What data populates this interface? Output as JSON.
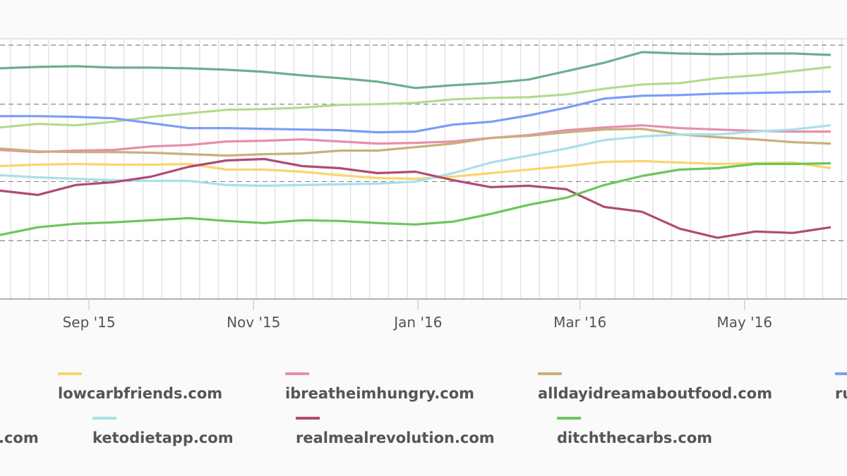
{
  "chart_data": {
    "type": "line",
    "title": "",
    "xlabel": "",
    "ylabel": "",
    "x_ticks": [
      {
        "date": "2015-09-01",
        "label": "Sep '15"
      },
      {
        "date": "2015-11-01",
        "label": "Nov '15"
      },
      {
        "date": "2016-01-01",
        "label": "Jan '16"
      },
      {
        "date": "2016-03-01",
        "label": "Mar '16"
      },
      {
        "date": "2016-05-01",
        "label": "May '16"
      }
    ],
    "xlim": [
      "2015-07-30",
      "2016-06-08"
    ],
    "ylim": [
      0,
      370
    ],
    "y_gridlines": [
      83,
      167,
      277,
      361
    ],
    "grid": {
      "vertical": "weekly",
      "horizontal": "dashed"
    },
    "legend_placement": "bottom",
    "x": [
      "2015-07-30",
      "2015-08-13",
      "2015-08-27",
      "2015-09-10",
      "2015-09-24",
      "2015-10-08",
      "2015-10-22",
      "2015-11-05",
      "2015-11-19",
      "2015-12-03",
      "2015-12-17",
      "2015-12-31",
      "2016-01-14",
      "2016-01-28",
      "2016-02-11",
      "2016-02-25",
      "2016-03-10",
      "2016-03-24",
      "2016-04-07",
      "2016-04-21",
      "2016-05-05",
      "2016-05-19",
      "2016-06-02"
    ],
    "series": [
      {
        "name": "",
        "color": "#6daf8c",
        "values": [
          328,
          330,
          331,
          329,
          329,
          328,
          326,
          323,
          318,
          314,
          309,
          300,
          304,
          307,
          312,
          324,
          336,
          351,
          349,
          348,
          349,
          349,
          347
        ]
      },
      {
        "name": "",
        "color": "#b5d98f",
        "values": [
          244,
          249,
          247,
          252,
          259,
          264,
          269,
          270,
          272,
          276,
          277,
          279,
          284,
          286,
          287,
          291,
          299,
          305,
          307,
          314,
          318,
          324,
          330
        ]
      },
      {
        "name": "ru",
        "color": "#7b9cf7",
        "values": [
          260,
          260,
          259,
          257,
          250,
          243,
          243,
          242,
          241,
          240,
          237,
          238,
          248,
          252,
          261,
          272,
          285,
          289,
          290,
          292,
          293,
          294,
          295
        ]
      },
      {
        "name": "ibreatheimhungry.com",
        "color": "#e68fac",
        "values": [
          212,
          209,
          211,
          212,
          217,
          219,
          224,
          225,
          227,
          224,
          221,
          222,
          224,
          229,
          233,
          240,
          244,
          247,
          243,
          241,
          239,
          238,
          238
        ]
      },
      {
        "name": "alldayidreamaboutfood.com",
        "color": "#c9b07a",
        "values": [
          214,
          210,
          209,
          209,
          208,
          206,
          204,
          206,
          207,
          211,
          211,
          216,
          221,
          229,
          232,
          237,
          241,
          242,
          234,
          230,
          227,
          223,
          221
        ]
      },
      {
        "name": "lowcarbfriends.com",
        "color": "#f9d56e",
        "values": [
          189,
          191,
          192,
          191,
          191,
          192,
          184,
          184,
          181,
          176,
          172,
          171,
          174,
          179,
          184,
          189,
          195,
          196,
          194,
          192,
          193,
          194,
          186
        ]
      },
      {
        "name": "ketodietapp.com",
        "color": "#a8e0e8",
        "values": [
          176,
          173,
          171,
          169,
          168,
          168,
          162,
          161,
          162,
          163,
          164,
          167,
          179,
          194,
          204,
          214,
          226,
          231,
          234,
          234,
          238,
          241,
          247
        ]
      },
      {
        "name": "realmealrevolution.com",
        "color": "#b04a74",
        "values": [
          154,
          148,
          162,
          166,
          174,
          188,
          197,
          199,
          189,
          186,
          179,
          181,
          169,
          159,
          161,
          156,
          131,
          124,
          100,
          87,
          96,
          94,
          102
        ]
      },
      {
        "name": "ditchthecarbs.com",
        "color": "#6cc55c",
        "values": [
          91,
          102,
          107,
          109,
          112,
          115,
          111,
          108,
          112,
          111,
          108,
          106,
          110,
          121,
          134,
          144,
          162,
          175,
          184,
          186,
          192,
          192,
          193
        ]
      }
    ]
  },
  "legend": {
    "row1": [
      {
        "label": "lowcarbfriends.com",
        "color": "#f9d56e"
      },
      {
        "label": "ibreatheimhungry.com",
        "color": "#e68fac"
      },
      {
        "label": "alldayidreamaboutfood.com",
        "color": "#c9b07a"
      },
      {
        "label": "ru",
        "color": "#7b9cf7"
      }
    ],
    "row2": [
      {
        "label": ".com",
        "color": ""
      },
      {
        "label": "ketodietapp.com",
        "color": "#a8e0e8"
      },
      {
        "label": "realmealrevolution.com",
        "color": "#b04a74"
      },
      {
        "label": "ditchthecarbs.com",
        "color": "#6cc55c"
      }
    ]
  }
}
